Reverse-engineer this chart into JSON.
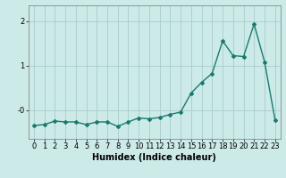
{
  "x": [
    0,
    1,
    2,
    3,
    4,
    5,
    6,
    7,
    8,
    9,
    10,
    11,
    12,
    13,
    14,
    15,
    16,
    17,
    18,
    19,
    20,
    21,
    22,
    23
  ],
  "y": [
    -0.35,
    -0.33,
    -0.25,
    -0.27,
    -0.27,
    -0.33,
    -0.27,
    -0.27,
    -0.37,
    -0.27,
    -0.18,
    -0.2,
    -0.17,
    -0.1,
    -0.05,
    0.38,
    0.62,
    0.82,
    1.55,
    1.22,
    1.2,
    1.93,
    1.08,
    -0.22
  ],
  "line_color": "#1a7a6e",
  "marker": "D",
  "marker_size": 2,
  "linewidth": 1.0,
  "bg_color": "#cceae8",
  "grid_color": "#aacccc",
  "xlabel": "Humidex (Indice chaleur)",
  "ytick_labels": [
    "-0",
    "1",
    "2"
  ],
  "xtick_labels": [
    "0",
    "1",
    "2",
    "3",
    "4",
    "5",
    "6",
    "7",
    "8",
    "9",
    "10",
    "11",
    "12",
    "13",
    "14",
    "15",
    "16",
    "17",
    "18",
    "19",
    "20",
    "21",
    "22",
    "23"
  ],
  "ylim": [
    -0.65,
    2.35
  ],
  "xlim": [
    -0.5,
    23.5
  ],
  "axis_fontsize": 6.5,
  "tick_fontsize": 6,
  "xlabel_fontsize": 7
}
